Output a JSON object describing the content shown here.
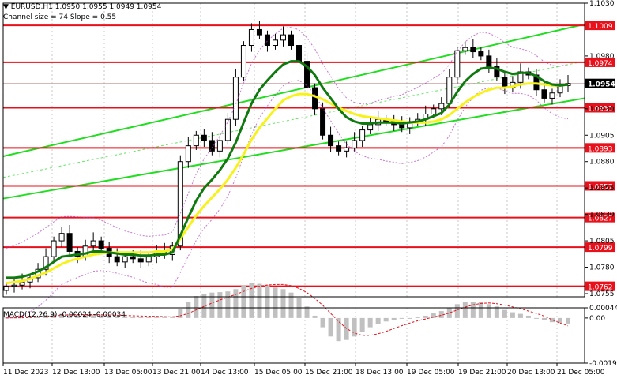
{
  "header": {
    "symbol_line": "▼ EURUSD,H1  1.0950 1.0955 1.0949 1.0954",
    "channel_line": "Channel size = 74 Slope = 0.55"
  },
  "macd": {
    "label": "MACD(12,26,9) -0.00024 -0.00034",
    "ticks": [
      "0.00044",
      "0.00",
      "-0.00195"
    ],
    "tick_values": [
      0.00044,
      0.0,
      -0.00195
    ]
  },
  "colors": {
    "accent_red": "#e8101a",
    "channel_green": "#22dd22",
    "ma_dark_green": "#0e7a0e",
    "ma_yellow": "#f6f21a",
    "price_label_bg": "#000000"
  },
  "chart_data": {
    "type": "candlestick",
    "symbol": "EURUSD",
    "timeframe": "H1",
    "ylim": [
      1.0752,
      1.103
    ],
    "price_ticks": [
      1.103,
      1.098,
      1.0955,
      1.093,
      1.0905,
      1.088,
      1.0855,
      1.083,
      1.0805,
      1.078,
      1.0755
    ],
    "price_tick_labels": [
      "1.1030",
      "1.0980",
      "1.0955",
      "1.0930",
      "1.0905",
      "1.0880",
      "1.0855",
      "1.0830",
      "1.0805",
      "1.0780",
      "1.0755"
    ],
    "x_labels": [
      "11 Dec 2023",
      "12 Dec 13:00",
      "13 Dec 05:00",
      "13 Dec 21:00",
      "14 Dec 13:00",
      "15 Dec 05:00",
      "15 Dec 21:00",
      "18 Dec 13:00",
      "19 Dec 05:00",
      "19 Dec 21:00",
      "20 Dec 13:00",
      "21 Dec 05:00"
    ],
    "levels": [
      {
        "value": 1.1009,
        "label": "1.1009"
      },
      {
        "value": 1.0974,
        "label": "1.0974"
      },
      {
        "value": 1.0931,
        "label": "1.0931"
      },
      {
        "value": 1.0893,
        "label": "1.0893"
      },
      {
        "value": 1.0857,
        "label": "1.0857"
      },
      {
        "value": 1.0827,
        "label": "1.0827"
      },
      {
        "value": 1.0799,
        "label": "1.0799"
      },
      {
        "value": 1.0762,
        "label": "1.0762"
      }
    ],
    "current_price": {
      "value": 1.0954,
      "label": "1.0954"
    },
    "close": [
      1.0762,
      1.0763,
      1.0766,
      1.077,
      1.0778,
      1.079,
      1.0805,
      1.0812,
      1.0795,
      1.079,
      1.08,
      1.0805,
      1.0798,
      1.079,
      1.0785,
      1.079,
      1.0788,
      1.0785,
      1.079,
      1.0795,
      1.0792,
      1.08,
      1.088,
      1.0895,
      1.0905,
      1.09,
      1.089,
      1.09,
      1.092,
      1.096,
      1.099,
      1.1005,
      1.1,
      1.099,
      1.0995,
      1.1,
      1.099,
      1.0975,
      1.095,
      1.093,
      1.0905,
      1.0895,
      1.089,
      1.0893,
      1.09,
      1.091,
      1.0915,
      1.092,
      1.0918,
      1.0915,
      1.0912,
      1.0918,
      1.092,
      1.0925,
      1.093,
      1.0935,
      1.096,
      1.0985,
      1.0988,
      1.0984,
      1.098,
      1.097,
      1.096,
      1.095,
      1.0955,
      1.0965,
      1.0962,
      1.0948,
      1.094,
      1.0945,
      1.0952,
      1.0954
    ],
    "ma_yellow": [
      1.0765,
      1.0766,
      1.0767,
      1.0769,
      1.0772,
      1.0775,
      1.0779,
      1.0783,
      1.0786,
      1.0788,
      1.079,
      1.0792,
      1.0793,
      1.0794,
      1.0794,
      1.0794,
      1.0794,
      1.0794,
      1.0794,
      1.0795,
      1.0795,
      1.0797,
      1.0807,
      1.0818,
      1.0829,
      1.0838,
      1.0846,
      1.0854,
      1.0863,
      1.0874,
      1.0887,
      1.0901,
      1.0912,
      1.0921,
      1.093,
      1.0938,
      1.0942,
      1.0944,
      1.0944,
      1.0942,
      1.0939,
      1.0935,
      1.0931,
      1.0928,
      1.0925,
      1.0923,
      1.0922,
      1.0921,
      1.092,
      1.0919,
      1.0918,
      1.0917,
      1.0917,
      1.0917,
      1.0918,
      1.092,
      1.0924,
      1.093,
      1.0936,
      1.0941,
      1.0945,
      1.0948,
      1.095,
      1.095,
      1.0951,
      1.0953,
      1.0954,
      1.0954,
      1.0953,
      1.0952,
      1.0952,
      1.0953
    ],
    "ma_green": [
      1.077,
      1.077,
      1.0771,
      1.0773,
      1.0776,
      1.078,
      1.0785,
      1.079,
      1.0791,
      1.0792,
      1.0793,
      1.0795,
      1.0795,
      1.0794,
      1.0793,
      1.0792,
      1.0792,
      1.0791,
      1.0791,
      1.0792,
      1.0792,
      1.0794,
      1.081,
      1.0827,
      1.0843,
      1.0855,
      1.0863,
      1.0872,
      1.0883,
      1.0898,
      1.0917,
      1.0935,
      1.0948,
      1.0957,
      1.0965,
      1.0972,
      1.0975,
      1.0975,
      1.097,
      1.0962,
      1.095,
      1.094,
      1.093,
      1.0922,
      1.0918,
      1.0916,
      1.0916,
      1.0917,
      1.0917,
      1.0917,
      1.0916,
      1.0917,
      1.0918,
      1.092,
      1.0923,
      1.0926,
      1.0934,
      1.0946,
      1.0956,
      1.0963,
      1.0968,
      1.0969,
      1.0968,
      1.0965,
      1.0963,
      1.0964,
      1.0964,
      1.0961,
      1.0956,
      1.0953,
      1.0952,
      1.0953
    ],
    "channel": {
      "upper": [
        1.0885,
        1.101
      ],
      "lower": [
        1.0845,
        1.094
      ],
      "mid": [
        1.0865,
        1.0975
      ]
    },
    "macd_hist": [
      2e-05,
      2e-05,
      3e-05,
      5e-05,
      8e-05,
      0.00012,
      0.00016,
      0.00018,
      0.00017,
      0.00015,
      0.00014,
      0.00013,
      0.00012,
      0.0001,
      8e-05,
      6e-05,
      5e-05,
      4e-05,
      4e-05,
      4e-05,
      4e-05,
      5e-05,
      0.0004,
      0.0007,
      0.00095,
      0.00105,
      0.0011,
      0.00112,
      0.00115,
      0.00125,
      0.0014,
      0.0015,
      0.00148,
      0.0014,
      0.00132,
      0.00125,
      0.0011,
      0.00085,
      0.0005,
      0.0001,
      -0.0004,
      -0.0008,
      -0.001,
      -0.00095,
      -0.0008,
      -0.0006,
      -0.0004,
      -0.00025,
      -0.00015,
      -8e-05,
      -3e-05,
      0.0,
      4e-05,
      0.0001,
      0.0002,
      0.0003,
      0.00045,
      0.0006,
      0.00068,
      0.0007,
      0.00068,
      0.0006,
      0.0005,
      0.00035,
      0.00025,
      0.00018,
      0.0001,
      0.0,
      -0.0001,
      -0.00018,
      -0.00022,
      -0.00024
    ],
    "macd_signal": [
      0.0,
      1e-05,
      1e-05,
      2e-05,
      4e-05,
      6e-05,
      9e-05,
      0.00012,
      0.00014,
      0.00015,
      0.00015,
      0.00015,
      0.00014,
      0.00013,
      0.00012,
      0.00011,
      0.0001,
      9e-05,
      8e-05,
      7e-05,
      6e-05,
      5e-05,
      0.0001,
      0.0002,
      0.00035,
      0.0005,
      0.00065,
      0.00078,
      0.0009,
      0.00102,
      0.00115,
      0.00128,
      0.00138,
      0.00143,
      0.00145,
      0.00145,
      0.0014,
      0.00128,
      0.0011,
      0.00085,
      0.00055,
      0.0002,
      -0.00015,
      -0.00045,
      -0.00065,
      -0.00075,
      -0.00075,
      -0.00068,
      -0.00058,
      -0.00045,
      -0.00033,
      -0.00022,
      -0.00012,
      -4e-05,
      4e-05,
      0.00012,
      0.00022,
      0.00035,
      0.00047,
      0.00057,
      0.00063,
      0.00065,
      0.00062,
      0.00056,
      0.00048,
      0.0004,
      0.0003,
      0.0002,
      8e-05,
      -8e-05,
      -0.00022,
      -0.00034
    ]
  }
}
